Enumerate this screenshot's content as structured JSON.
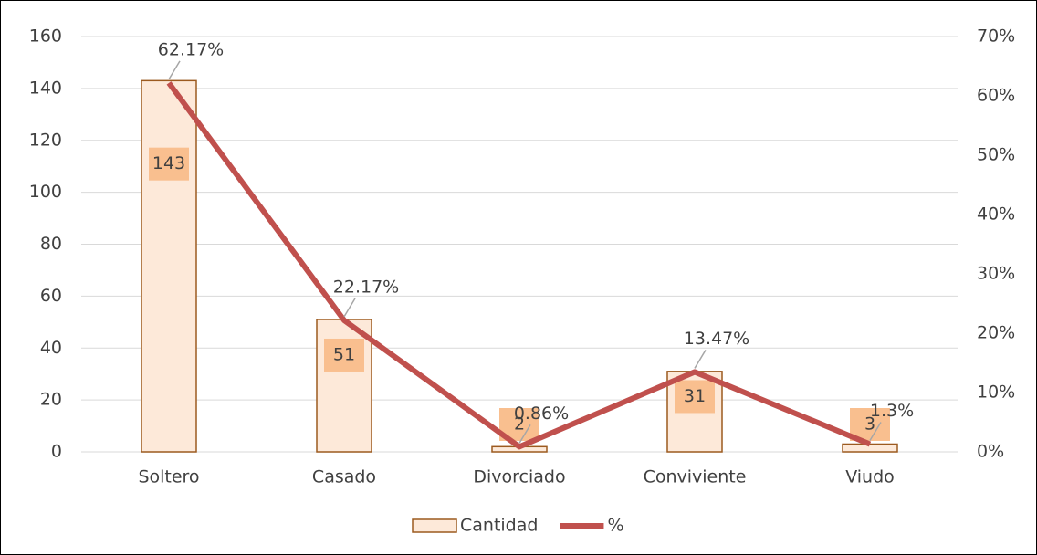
{
  "chart_data": {
    "type": "bar",
    "categories": [
      "Soltero",
      "Casado",
      "Divorciado",
      "Conviviente",
      "Viudo"
    ],
    "series": [
      {
        "name": "Cantidad",
        "type": "bar",
        "color": "#fde9d9",
        "edge_color": "#9c5a1f",
        "label_color": "#f9bf8f",
        "values": [
          143,
          51,
          2,
          31,
          3
        ]
      },
      {
        "name": "%",
        "type": "line",
        "axis": "y2",
        "color": "#c0504d",
        "values": [
          62.17,
          22.17,
          0.86,
          13.47,
          1.3
        ],
        "value_labels": [
          "62.17%",
          "22.17%",
          "0.86%",
          "13.47%",
          "1.3%"
        ]
      }
    ],
    "ylim": [
      0,
      160
    ],
    "yticks": [
      0,
      20,
      40,
      60,
      80,
      100,
      120,
      140,
      160
    ],
    "y2lim": [
      0,
      70
    ],
    "y2ticks": [
      {
        "value": 0,
        "label": "0%"
      },
      {
        "value": 10,
        "label": "10%"
      },
      {
        "value": 20,
        "label": "20%"
      },
      {
        "value": 30,
        "label": "30%"
      },
      {
        "value": 40,
        "label": "40%"
      },
      {
        "value": 50,
        "label": "50%"
      },
      {
        "value": 60,
        "label": "60%"
      },
      {
        "value": 70,
        "label": "70%"
      }
    ],
    "grid": true,
    "legend": "bottom"
  }
}
